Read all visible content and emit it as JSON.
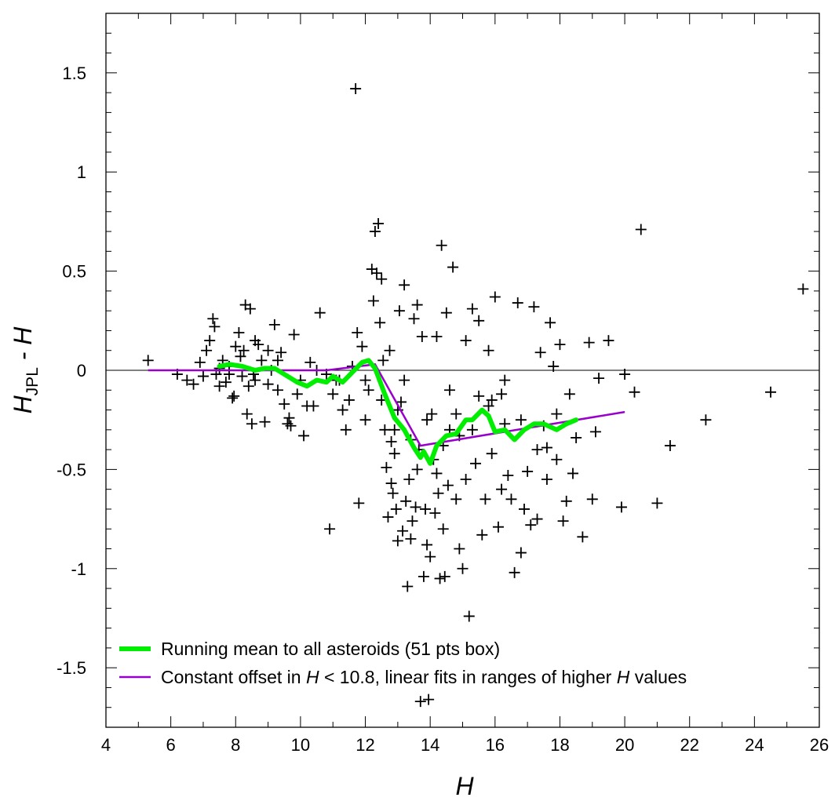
{
  "chart_data": {
    "type": "scatter",
    "xlabel": "H",
    "ylabel": {
      "main": "H",
      "subscript": "JPL",
      "suffix": " - H"
    },
    "xlim": [
      4,
      26
    ],
    "ylim": [
      -1.8,
      1.8
    ],
    "x_ticks": [
      4,
      6,
      8,
      10,
      12,
      14,
      16,
      18,
      20,
      22,
      24,
      26
    ],
    "x_tick_labels": [
      "4",
      "6",
      "8",
      "10",
      "12",
      "14",
      "16",
      "18",
      "20",
      "22",
      "24",
      "26"
    ],
    "y_ticks": [
      1.5,
      1,
      0.5,
      0,
      -0.5,
      -1,
      -1.5
    ],
    "y_tick_labels": [
      "1.5",
      "1",
      "0.5",
      "0",
      "-0.5",
      "-1",
      "-1.5"
    ],
    "zero_line": 0,
    "grid": false,
    "legend_position": "bottom-left",
    "legend": [
      {
        "series": "running_mean",
        "label": "Running mean to all asteroids (51 pts box)",
        "color": "#00ee00"
      },
      {
        "series": "fits",
        "label_parts": [
          {
            "text": "Constant offset in ",
            "italic": false
          },
          {
            "text": "H",
            "italic": true
          },
          {
            "text": " < 10.8, linear fits in ranges of higher ",
            "italic": false
          },
          {
            "text": "H",
            "italic": true
          },
          {
            "text": " values",
            "italic": false
          }
        ],
        "color": "#9900cc"
      }
    ],
    "series": [
      {
        "id": "asteroids",
        "kind": "scatter",
        "marker": "plus",
        "color": "#000000",
        "points": [
          [
            5.3,
            0.05
          ],
          [
            6.2,
            -0.02
          ],
          [
            6.5,
            -0.05
          ],
          [
            6.7,
            -0.07
          ],
          [
            6.9,
            0.04
          ],
          [
            7.0,
            -0.03
          ],
          [
            7.1,
            0.1
          ],
          [
            7.2,
            0.15
          ],
          [
            7.3,
            0.26
          ],
          [
            7.35,
            0.22
          ],
          [
            7.4,
            -0.02
          ],
          [
            7.5,
            0.01
          ],
          [
            7.5,
            -0.08
          ],
          [
            7.6,
            0.05
          ],
          [
            7.7,
            -0.06
          ],
          [
            7.8,
            0.02
          ],
          [
            7.9,
            -0.14
          ],
          [
            7.95,
            -0.13
          ],
          [
            8.0,
            0.12
          ],
          [
            8.1,
            0.19
          ],
          [
            8.15,
            0.07
          ],
          [
            8.2,
            -0.03
          ],
          [
            8.25,
            0.1
          ],
          [
            8.3,
            0.33
          ],
          [
            8.35,
            -0.22
          ],
          [
            8.4,
            -0.08
          ],
          [
            8.45,
            0.31
          ],
          [
            8.5,
            -0.27
          ],
          [
            8.55,
            -0.02
          ],
          [
            8.6,
            0.15
          ],
          [
            8.7,
            0.13
          ],
          [
            8.8,
            0.05
          ],
          [
            8.9,
            -0.26
          ],
          [
            9.0,
            0.1
          ],
          [
            9.0,
            -0.07
          ],
          [
            9.1,
            0.0
          ],
          [
            9.2,
            0.23
          ],
          [
            9.3,
            0.05
          ],
          [
            9.4,
            0.09
          ],
          [
            9.5,
            -0.17
          ],
          [
            9.6,
            -0.27
          ],
          [
            9.65,
            -0.24
          ],
          [
            9.7,
            -0.28
          ],
          [
            9.8,
            0.18
          ],
          [
            9.9,
            -0.12
          ],
          [
            10.0,
            -0.05
          ],
          [
            10.1,
            -0.33
          ],
          [
            10.2,
            -0.18
          ],
          [
            10.3,
            0.04
          ],
          [
            10.4,
            -0.18
          ],
          [
            10.5,
            0.0
          ],
          [
            10.6,
            0.29
          ],
          [
            10.9,
            -0.8
          ],
          [
            11.0,
            -0.12
          ],
          [
            11.1,
            -0.05
          ],
          [
            11.3,
            -0.2
          ],
          [
            11.4,
            -0.3
          ],
          [
            11.5,
            -0.15
          ],
          [
            11.6,
            0.02
          ],
          [
            11.7,
            1.42
          ],
          [
            11.75,
            0.19
          ],
          [
            11.8,
            -0.67
          ],
          [
            11.9,
            0.12
          ],
          [
            12.0,
            -0.25
          ],
          [
            12.1,
            -0.1
          ],
          [
            12.2,
            0.51
          ],
          [
            12.25,
            0.35
          ],
          [
            12.3,
            0.7
          ],
          [
            12.35,
            0.49
          ],
          [
            12.4,
            0.74
          ],
          [
            12.45,
            0.24
          ],
          [
            12.5,
            0.46
          ],
          [
            12.55,
            0.05
          ],
          [
            12.6,
            -0.3
          ],
          [
            12.65,
            -0.49
          ],
          [
            12.7,
            -0.74
          ],
          [
            12.75,
            0.1
          ],
          [
            12.8,
            -0.57
          ],
          [
            12.85,
            -0.62
          ],
          [
            12.9,
            -0.3
          ],
          [
            12.95,
            -0.7
          ],
          [
            13.0,
            -0.86
          ],
          [
            13.05,
            0.3
          ],
          [
            13.1,
            -0.16
          ],
          [
            13.15,
            -0.81
          ],
          [
            13.2,
            0.43
          ],
          [
            13.25,
            -0.66
          ],
          [
            13.3,
            -1.09
          ],
          [
            13.35,
            -0.55
          ],
          [
            13.4,
            -0.85
          ],
          [
            13.45,
            -0.76
          ],
          [
            13.5,
            0.26
          ],
          [
            13.55,
            -0.69
          ],
          [
            13.6,
            0.33
          ],
          [
            13.65,
            -0.4
          ],
          [
            13.7,
            -1.67
          ],
          [
            13.75,
            0.17
          ],
          [
            13.8,
            -1.04
          ],
          [
            13.85,
            -0.7
          ],
          [
            13.9,
            -0.88
          ],
          [
            13.95,
            -1.66
          ],
          [
            14.0,
            -0.94
          ],
          [
            14.05,
            -0.22
          ],
          [
            14.1,
            -0.45
          ],
          [
            14.15,
            -0.72
          ],
          [
            14.2,
            0.17
          ],
          [
            14.25,
            -0.62
          ],
          [
            14.3,
            -1.05
          ],
          [
            14.35,
            0.63
          ],
          [
            14.4,
            -0.8
          ],
          [
            14.45,
            -1.04
          ],
          [
            14.5,
            0.29
          ],
          [
            14.55,
            -0.58
          ],
          [
            14.6,
            -0.3
          ],
          [
            14.7,
            0.52
          ],
          [
            14.8,
            -0.65
          ],
          [
            14.9,
            -0.9
          ],
          [
            15.0,
            -1.0
          ],
          [
            15.1,
            0.15
          ],
          [
            15.2,
            -1.24
          ],
          [
            15.3,
            0.31
          ],
          [
            15.4,
            -0.47
          ],
          [
            15.5,
            0.25
          ],
          [
            15.6,
            -0.83
          ],
          [
            15.7,
            -0.65
          ],
          [
            15.8,
            0.1
          ],
          [
            15.9,
            -0.42
          ],
          [
            16.0,
            0.37
          ],
          [
            16.1,
            -0.79
          ],
          [
            16.2,
            -0.12
          ],
          [
            16.3,
            -0.27
          ],
          [
            16.4,
            -0.53
          ],
          [
            16.5,
            -0.65
          ],
          [
            16.6,
            -1.02
          ],
          [
            16.7,
            0.34
          ],
          [
            16.8,
            -0.92
          ],
          [
            16.9,
            -0.7
          ],
          [
            17.0,
            -0.51
          ],
          [
            17.1,
            -0.78
          ],
          [
            17.2,
            0.32
          ],
          [
            17.3,
            -0.75
          ],
          [
            17.4,
            0.09
          ],
          [
            17.5,
            -0.28
          ],
          [
            17.6,
            -0.39
          ],
          [
            17.7,
            0.24
          ],
          [
            17.8,
            0.02
          ],
          [
            17.9,
            -0.22
          ],
          [
            18.0,
            0.13
          ],
          [
            18.1,
            -0.76
          ],
          [
            18.2,
            -0.66
          ],
          [
            18.3,
            -0.12
          ],
          [
            18.4,
            -0.52
          ],
          [
            18.5,
            -0.34
          ],
          [
            18.7,
            -0.84
          ],
          [
            18.9,
            0.14
          ],
          [
            19.0,
            -0.65
          ],
          [
            19.1,
            -0.31
          ],
          [
            19.2,
            -0.04
          ],
          [
            19.5,
            0.15
          ],
          [
            19.9,
            -0.69
          ],
          [
            20.0,
            -0.02
          ],
          [
            20.3,
            -0.11
          ],
          [
            20.5,
            0.71
          ],
          [
            21.0,
            -0.67
          ],
          [
            21.4,
            -0.38
          ],
          [
            22.5,
            -0.25
          ],
          [
            24.5,
            -0.11
          ],
          [
            25.5,
            0.41
          ],
          [
            11.2,
            -0.05
          ],
          [
            10.8,
            -0.02
          ],
          [
            9.3,
            -0.1
          ],
          [
            8.6,
            -0.05
          ],
          [
            7.8,
            -0.02
          ],
          [
            12.0,
            -0.05
          ],
          [
            12.5,
            -0.15
          ],
          [
            13.0,
            -0.2
          ],
          [
            13.4,
            -0.35
          ],
          [
            13.9,
            -0.25
          ],
          [
            14.4,
            -0.38
          ],
          [
            14.8,
            -0.22
          ],
          [
            15.3,
            -0.3
          ],
          [
            15.8,
            -0.18
          ],
          [
            16.3,
            -0.05
          ],
          [
            16.8,
            -0.25
          ],
          [
            17.3,
            -0.4
          ],
          [
            17.9,
            -0.45
          ],
          [
            12.8,
            -0.36
          ],
          [
            13.6,
            -0.5
          ],
          [
            14.2,
            -0.52
          ],
          [
            15.1,
            -0.55
          ],
          [
            15.5,
            -0.13
          ],
          [
            16.2,
            -0.6
          ],
          [
            14.6,
            -0.1
          ],
          [
            13.2,
            -0.05
          ],
          [
            12.9,
            -0.42
          ],
          [
            14.9,
            -0.33
          ],
          [
            15.9,
            -0.15
          ],
          [
            17.6,
            -0.55
          ]
        ]
      },
      {
        "id": "running_mean",
        "kind": "line",
        "color": "#00ee00",
        "points": [
          [
            7.5,
            0.02
          ],
          [
            7.8,
            0.03
          ],
          [
            8.2,
            0.02
          ],
          [
            8.6,
            0.0
          ],
          [
            8.9,
            0.01
          ],
          [
            9.2,
            0.01
          ],
          [
            9.4,
            -0.01
          ],
          [
            9.6,
            -0.03
          ],
          [
            9.9,
            -0.06
          ],
          [
            10.2,
            -0.08
          ],
          [
            10.5,
            -0.05
          ],
          [
            10.8,
            -0.06
          ],
          [
            11.0,
            -0.03
          ],
          [
            11.3,
            -0.06
          ],
          [
            11.6,
            -0.01
          ],
          [
            11.9,
            0.04
          ],
          [
            12.1,
            0.05
          ],
          [
            12.3,
            0.01
          ],
          [
            12.6,
            -0.12
          ],
          [
            12.9,
            -0.24
          ],
          [
            13.2,
            -0.3
          ],
          [
            13.5,
            -0.39
          ],
          [
            13.7,
            -0.44
          ],
          [
            13.8,
            -0.41
          ],
          [
            14.0,
            -0.47
          ],
          [
            14.2,
            -0.38
          ],
          [
            14.5,
            -0.33
          ],
          [
            14.8,
            -0.32
          ],
          [
            15.1,
            -0.25
          ],
          [
            15.3,
            -0.25
          ],
          [
            15.6,
            -0.2
          ],
          [
            15.8,
            -0.23
          ],
          [
            16.0,
            -0.31
          ],
          [
            16.3,
            -0.3
          ],
          [
            16.6,
            -0.35
          ],
          [
            16.9,
            -0.3
          ],
          [
            17.2,
            -0.27
          ],
          [
            17.5,
            -0.27
          ],
          [
            17.9,
            -0.3
          ],
          [
            18.2,
            -0.27
          ],
          [
            18.5,
            -0.25
          ]
        ]
      },
      {
        "id": "fits",
        "kind": "line",
        "color": "#9900cc",
        "points": [
          [
            5.3,
            0.0
          ],
          [
            10.8,
            0.0
          ],
          [
            12.3,
            0.03
          ],
          [
            13.7,
            -0.38
          ],
          [
            20.0,
            -0.21
          ]
        ]
      }
    ]
  }
}
